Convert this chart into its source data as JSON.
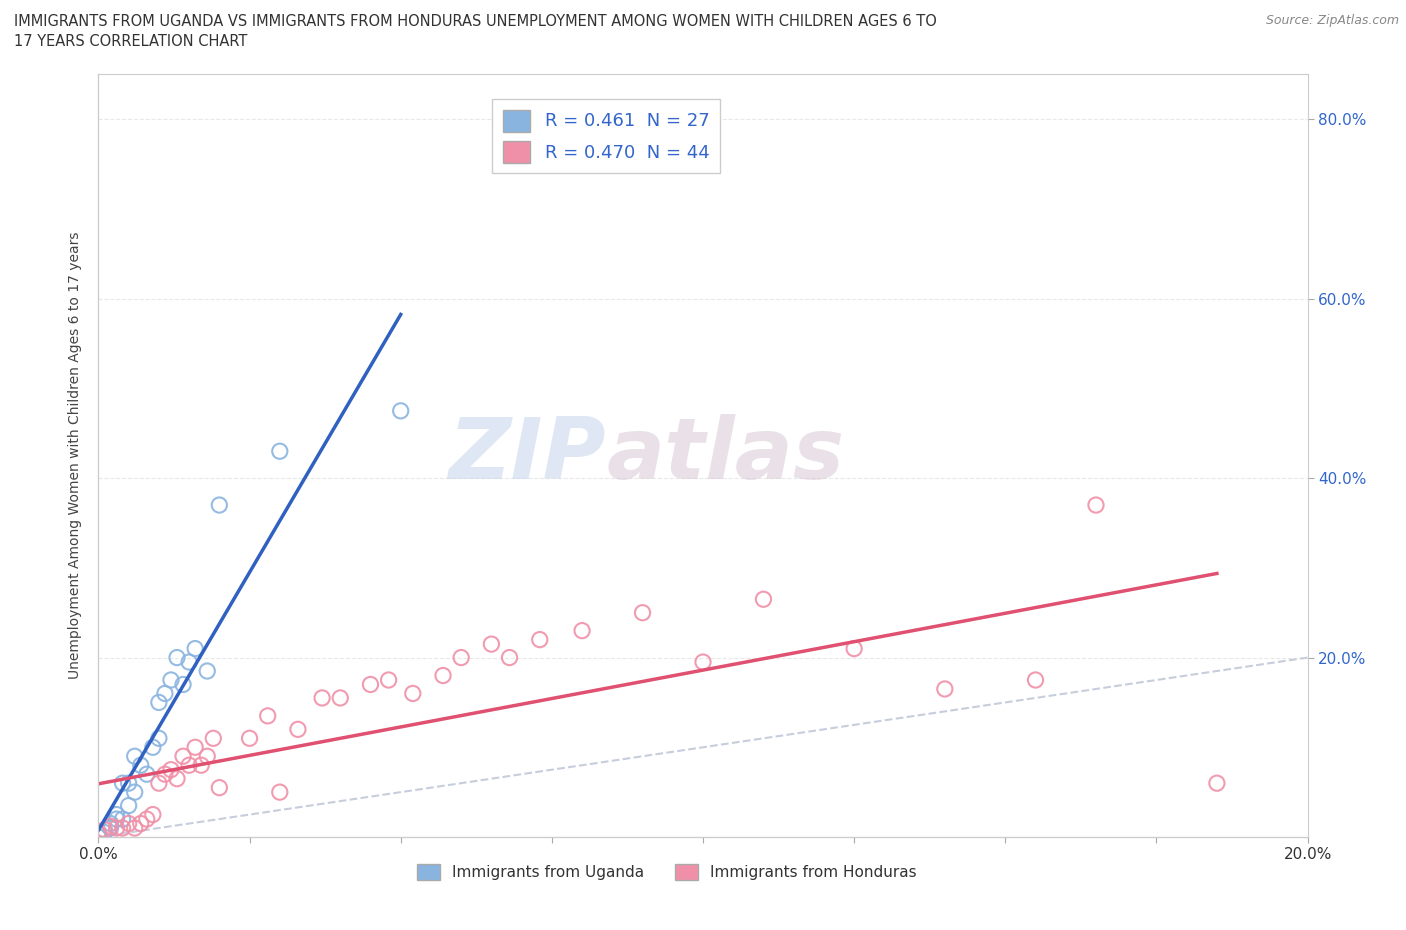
{
  "title_line1": "IMMIGRANTS FROM UGANDA VS IMMIGRANTS FROM HONDURAS UNEMPLOYMENT AMONG WOMEN WITH CHILDREN AGES 6 TO",
  "title_line2": "17 YEARS CORRELATION CHART",
  "source": "Source: ZipAtlas.com",
  "ylabel": "Unemployment Among Women with Children Ages 6 to 17 years",
  "watermark_ZIP": "ZIP",
  "watermark_atlas": "atlas",
  "uganda_R": 0.461,
  "uganda_N": 27,
  "honduras_R": 0.47,
  "honduras_N": 44,
  "uganda_color": "#8ab4e0",
  "honduras_color": "#f090a8",
  "uganda_line_color": "#3060c0",
  "honduras_line_color": "#e05070",
  "legend_label_uganda": "Immigrants from Uganda",
  "legend_label_honduras": "Immigrants from Honduras",
  "stat_color": "#3366cc",
  "xlim": [
    0.0,
    0.2
  ],
  "ylim": [
    0.0,
    0.85
  ],
  "yticks_right": [
    0.2,
    0.4,
    0.6,
    0.8
  ],
  "ytick_labels_right": [
    "20.0%",
    "40.0%",
    "60.0%",
    "80.0%"
  ],
  "xtick_labels": [
    "0.0%",
    "",
    "",
    "",
    "",
    "",
    "",
    "",
    "20.0%"
  ],
  "uganda_x": [
    0.0,
    0.001,
    0.002,
    0.002,
    0.003,
    0.003,
    0.004,
    0.004,
    0.005,
    0.005,
    0.006,
    0.006,
    0.007,
    0.008,
    0.009,
    0.01,
    0.01,
    0.011,
    0.012,
    0.013,
    0.014,
    0.015,
    0.016,
    0.018,
    0.02,
    0.03,
    0.05
  ],
  "uganda_y": [
    0.0,
    0.005,
    0.01,
    0.015,
    0.02,
    0.025,
    0.02,
    0.06,
    0.035,
    0.06,
    0.05,
    0.09,
    0.08,
    0.07,
    0.1,
    0.11,
    0.15,
    0.16,
    0.175,
    0.2,
    0.17,
    0.195,
    0.21,
    0.185,
    0.37,
    0.43,
    0.475
  ],
  "honduras_x": [
    0.0,
    0.001,
    0.002,
    0.003,
    0.004,
    0.005,
    0.006,
    0.007,
    0.008,
    0.009,
    0.01,
    0.011,
    0.012,
    0.013,
    0.014,
    0.015,
    0.016,
    0.017,
    0.018,
    0.019,
    0.02,
    0.025,
    0.028,
    0.03,
    0.033,
    0.037,
    0.04,
    0.045,
    0.048,
    0.052,
    0.057,
    0.06,
    0.065,
    0.068,
    0.073,
    0.08,
    0.09,
    0.1,
    0.11,
    0.125,
    0.14,
    0.155,
    0.165,
    0.185
  ],
  "honduras_y": [
    0.005,
    0.008,
    0.012,
    0.01,
    0.01,
    0.015,
    0.01,
    0.015,
    0.02,
    0.025,
    0.06,
    0.07,
    0.075,
    0.065,
    0.09,
    0.08,
    0.1,
    0.08,
    0.09,
    0.11,
    0.055,
    0.11,
    0.135,
    0.05,
    0.12,
    0.155,
    0.155,
    0.17,
    0.175,
    0.16,
    0.18,
    0.2,
    0.215,
    0.2,
    0.22,
    0.23,
    0.25,
    0.195,
    0.265,
    0.21,
    0.165,
    0.175,
    0.37,
    0.06
  ],
  "grid_color": "#e8e8e8",
  "dashed_line_color": "#c0c8d8"
}
